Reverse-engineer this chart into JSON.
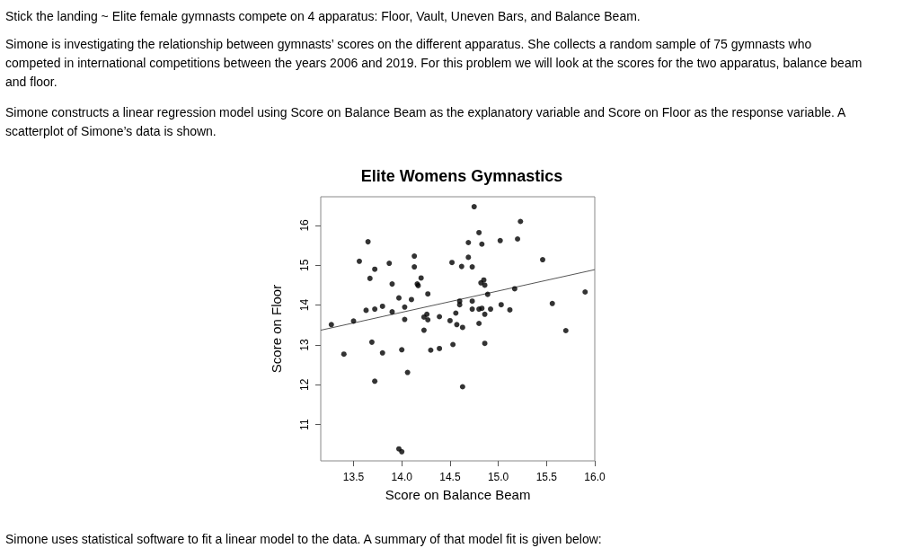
{
  "chart_data": {
    "type": "scatter",
    "title": "Elite Womens Gymnastics",
    "xlabel": "Score on Balance Beam",
    "ylabel": "Score on Floor",
    "annotations": [
      "Stick the landing ~ Elite female gymnasts compete on 4 apparatus: Floor, Vault, Uneven Bars, and Balance Beam.",
      "Simone is investigating the relationship between gymnasts’ scores on the different apparatus. She collects a random sample of 75 gymnasts who competed in international competitions between the years 2006 and 2019. For this problem we will look at the scores for the two apparatus, balance beam and floor.",
      "Simone constructs a linear regression model using Score on Balance Beam as the explanatory variable and Score on Floor as the response variable. A scatterplot of Simone’s data is shown.",
      "Simone uses statistical software to fit a linear model to the data. A summary of that model fit is given below:"
    ],
    "xlim": [
      13.16,
      16.0
    ],
    "ylim": [
      10.09,
      16.72
    ],
    "xticks": [
      13.5,
      {
        "value": 14.0,
        "label": "14.0"
      },
      14.5,
      {
        "value": 15.0,
        "label": "15.0"
      },
      15.5,
      {
        "value": 16.0,
        "label": "16.0"
      }
    ],
    "yticks": [
      11,
      12,
      13,
      14,
      15,
      16
    ],
    "grid": false,
    "marker": "circle",
    "series": [
      {
        "color": "#000000",
        "x": [
          13.27,
          13.4,
          13.5,
          13.65,
          13.56,
          13.67,
          13.72,
          13.63,
          13.72,
          13.8,
          13.69,
          13.8,
          13.72,
          13.87,
          13.9,
          13.9,
          13.97,
          14.0,
          14.03,
          14.03,
          14.06,
          14.1,
          13.97,
          14.0,
          14.13,
          14.13,
          14.16,
          14.17,
          14.2,
          14.27,
          14.23,
          14.26,
          14.27,
          14.23,
          14.3,
          14.39,
          14.39,
          14.5,
          14.52,
          14.53,
          14.56,
          14.57,
          14.6,
          14.6,
          14.62,
          14.63,
          14.63,
          14.69,
          14.69,
          14.73,
          14.73,
          14.73,
          14.75,
          14.8,
          14.83,
          14.8,
          14.83,
          14.8,
          14.82,
          14.85,
          14.86,
          14.86,
          14.86,
          14.89,
          14.92,
          15.02,
          15.03,
          15.12,
          15.17,
          15.2,
          15.23,
          15.46,
          15.56,
          15.7,
          15.9
        ],
        "values": [
          13.51,
          12.77,
          13.6,
          15.59,
          15.1,
          14.67,
          14.9,
          13.87,
          13.9,
          13.97,
          13.07,
          12.8,
          12.09,
          15.05,
          14.53,
          13.83,
          14.18,
          12.88,
          13.95,
          13.64,
          12.31,
          14.14,
          10.39,
          10.32,
          15.23,
          14.96,
          14.53,
          14.49,
          14.68,
          14.28,
          13.7,
          13.77,
          13.63,
          13.37,
          12.87,
          13.71,
          12.91,
          13.61,
          15.07,
          13.01,
          13.8,
          13.51,
          14.1,
          14.01,
          14.97,
          13.44,
          11.95,
          15.57,
          15.2,
          14.96,
          14.1,
          13.9,
          16.47,
          15.82,
          15.53,
          13.9,
          13.92,
          13.54,
          14.56,
          14.63,
          14.5,
          13.77,
          13.04,
          14.27,
          13.9,
          15.62,
          14.01,
          13.88,
          14.41,
          15.66,
          16.1,
          15.14,
          14.04,
          13.36,
          14.33
        ]
      },
      {
        "type": "line",
        "color": "#555555",
        "marker": "none",
        "x": [
          13.16,
          16.0
        ],
        "values": [
          13.37,
          14.89
        ]
      }
    ]
  }
}
